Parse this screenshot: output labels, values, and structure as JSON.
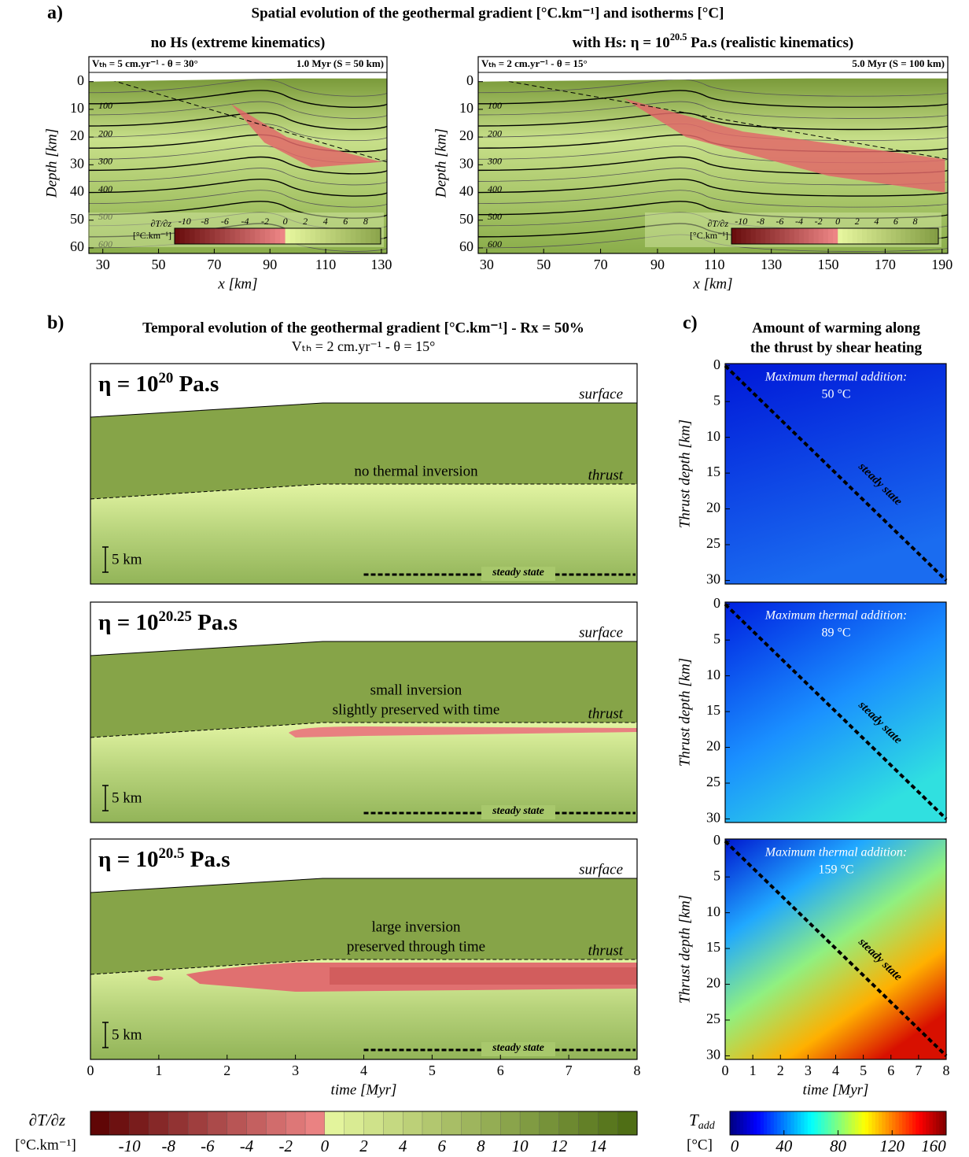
{
  "figure": {
    "panel_labels": [
      "a)",
      "b)",
      "c)"
    ],
    "a_title": "Spatial evolution of the geothermal gradient [°C.km⁻¹] and isotherms [°C]",
    "b_title": "Temporal evolution of the geothermal gradient [°C.km⁻¹] - Rx = 50%",
    "b_subtitle": "Vₜₕ = 2 cm.yr⁻¹ - θ = 15°",
    "c_title": [
      "Amount of warming along",
      "the thrust by shear heating"
    ]
  },
  "chart_data": [
    {
      "type": "contour",
      "title": "no Hs (extreme kinematics)",
      "info_left": "Vₜₕ = 5 cm.yr⁻¹ - θ = 30°",
      "info_right": "1.0 Myr (S = 50 km)",
      "xlabel": "x [km]",
      "ylabel": "Depth [km]",
      "xlim": [
        25,
        132
      ],
      "xticks": [
        30,
        50,
        70,
        90,
        110,
        130
      ],
      "ylim": [
        -9,
        62
      ],
      "yticks": [
        0,
        10,
        20,
        30,
        40,
        50,
        60
      ],
      "isotherm_labels": [
        100,
        200,
        300,
        400,
        500,
        600
      ],
      "legend": {
        "label": [
          "∂T/∂z",
          "[°C.km⁻¹]"
        ],
        "lim": [
          -11,
          9.5
        ],
        "ticks": [
          -10,
          -8,
          -6,
          -4,
          -2,
          0,
          2,
          4,
          6,
          8
        ]
      }
    },
    {
      "type": "contour",
      "title": "with Hs: η = 10",
      "title_exp": "20.5",
      "title_suffix": " Pa.s (realistic kinematics)",
      "info_left": "Vₜₕ = 2 cm.yr⁻¹ - θ = 15°",
      "info_right": "5.0 Myr (S = 100 km)",
      "xlabel": "x [km]",
      "ylabel": "Depth [km]",
      "xlim": [
        27,
        192
      ],
      "xticks": [
        30,
        50,
        70,
        90,
        110,
        130,
        150,
        170,
        190
      ],
      "ylim": [
        -9,
        62
      ],
      "yticks": [
        0,
        10,
        20,
        30,
        40,
        50,
        60
      ],
      "isotherm_labels": [
        100,
        200,
        300,
        400,
        500,
        600
      ],
      "legend": {
        "label": [
          "∂T/∂z",
          "[°C.km⁻¹]"
        ],
        "lim": [
          -11,
          10.4
        ],
        "ticks": [
          -10,
          -8,
          -6,
          -4,
          -2,
          0,
          2,
          4,
          6,
          8
        ]
      }
    },
    {
      "type": "timeline",
      "title": "η = 10",
      "title_exp": "20",
      "title_suffix": " Pa.s",
      "xlim": [
        0,
        8
      ],
      "surface": "surface",
      "thrust": "thrust",
      "inversion": [
        "no thermal inversion"
      ],
      "scale": "5 km",
      "steady": "steady state"
    },
    {
      "type": "timeline",
      "title": "η = 10",
      "title_exp": "20.25",
      "title_suffix": " Pa.s",
      "xlim": [
        0,
        8
      ],
      "surface": "surface",
      "thrust": "thrust",
      "inversion": [
        "small inversion",
        "slightly preserved with time"
      ],
      "scale": "5 km",
      "steady": "steady state"
    },
    {
      "type": "timeline",
      "title": "η = 10",
      "title_exp": "20.5",
      "title_suffix": " Pa.s",
      "xlim": [
        0,
        8
      ],
      "xticks": [
        0,
        1,
        2,
        3,
        4,
        5,
        6,
        7,
        8
      ],
      "xlabel": "time [Myr]",
      "surface": "surface",
      "thrust": "thrust",
      "inversion": [
        "large inversion",
        "preserved through time"
      ],
      "scale": "5 km",
      "steady": "steady state"
    },
    {
      "type": "heatmap",
      "note": "Maximum thermal addition:",
      "max": "50 °C",
      "steady": "steady state",
      "ylabel": "Thrust depth [km]",
      "xlim": [
        0,
        8
      ],
      "ylim": [
        -0.3,
        30.5
      ],
      "yticks": [
        0,
        5,
        10,
        15,
        20,
        25,
        30
      ]
    },
    {
      "type": "heatmap",
      "note": "Maximum thermal addition:",
      "max": "89 °C",
      "steady": "steady state",
      "ylabel": "Thrust depth [km]",
      "xlim": [
        0,
        8
      ],
      "ylim": [
        -0.3,
        30.5
      ],
      "yticks": [
        0,
        5,
        10,
        15,
        20,
        25,
        30
      ]
    },
    {
      "type": "heatmap",
      "note": "Maximum thermal addition:",
      "max": "159 °C",
      "steady": "steady state",
      "ylabel": "Thrust depth [km]",
      "xlim": [
        0,
        8
      ],
      "ylim": [
        -0.3,
        30.5
      ],
      "yticks": [
        0,
        5,
        10,
        15,
        20,
        25,
        30
      ],
      "xticks": [
        0,
        1,
        2,
        3,
        4,
        5,
        6,
        7,
        8
      ],
      "xlabel": "time [Myr]"
    }
  ],
  "colorbars": [
    {
      "label": [
        "∂T/∂z",
        "[°C.km⁻¹]"
      ],
      "lim": [
        -12,
        16
      ],
      "ticks": [
        -10,
        -8,
        -6,
        -4,
        -2,
        0,
        2,
        4,
        6,
        8,
        10,
        12,
        14
      ]
    },
    {
      "label": [
        "T",
        "add",
        "[°C]"
      ],
      "lim": [
        0,
        160
      ],
      "ticks": [
        0,
        40,
        80,
        120,
        160
      ]
    }
  ]
}
